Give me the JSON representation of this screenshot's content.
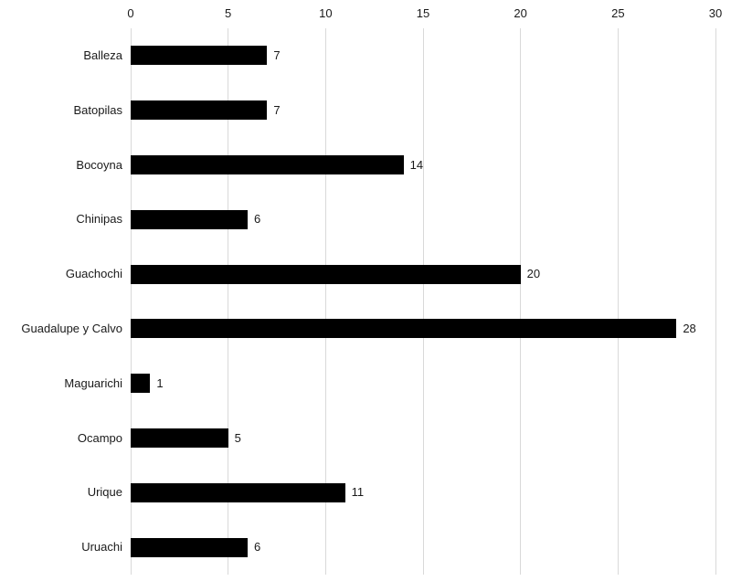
{
  "chart_data": {
    "type": "bar",
    "orientation": "horizontal",
    "title": "",
    "xlabel": "",
    "ylabel": "",
    "categories": [
      "Balleza",
      "Batopilas",
      "Bocoyna",
      "Chinipas",
      "Guachochi",
      "Guadalupe y Calvo",
      "Maguarichi",
      "Ocampo",
      "Urique",
      "Uruachi"
    ],
    "values": [
      7,
      7,
      14,
      6,
      20,
      28,
      1,
      5,
      11,
      6
    ],
    "data_labels": [
      "7",
      "7",
      "14",
      "6",
      "20",
      "28",
      "1",
      "5",
      "11",
      "6"
    ],
    "xlim": [
      0,
      30
    ],
    "xticks": [
      0,
      5,
      10,
      15,
      20,
      25,
      30
    ],
    "axis_position": "top",
    "grid": true,
    "legend": false,
    "colors": {
      "bar": "#000000",
      "gridline": "#d9d9d9",
      "text": "#1a1a1a",
      "background": "#ffffff"
    }
  }
}
